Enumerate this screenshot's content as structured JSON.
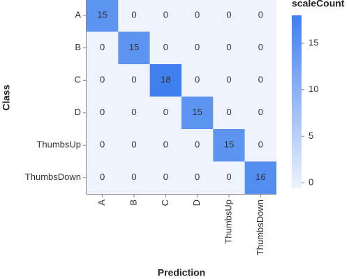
{
  "chart_data": {
    "type": "heatmap",
    "x_label": "Prediction",
    "y_label": "Class",
    "x_categories": [
      "A",
      "B",
      "C",
      "D",
      "ThumbsUp",
      "ThumbsDown"
    ],
    "y_categories": [
      "A",
      "B",
      "C",
      "D",
      "ThumbsUp",
      "ThumbsDown"
    ],
    "values": [
      [
        15,
        0,
        0,
        0,
        0,
        0
      ],
      [
        0,
        15,
        0,
        0,
        0,
        0
      ],
      [
        0,
        0,
        18,
        0,
        0,
        0
      ],
      [
        0,
        0,
        0,
        15,
        0,
        0
      ],
      [
        0,
        0,
        0,
        0,
        15,
        0
      ],
      [
        0,
        0,
        0,
        0,
        0,
        16
      ]
    ],
    "legend_title": "scaleCount",
    "clim": [
      0,
      18
    ],
    "cticks": [
      0,
      5,
      10,
      15
    ],
    "color_low": "#eef3fd",
    "color_high": "#4080ee"
  }
}
